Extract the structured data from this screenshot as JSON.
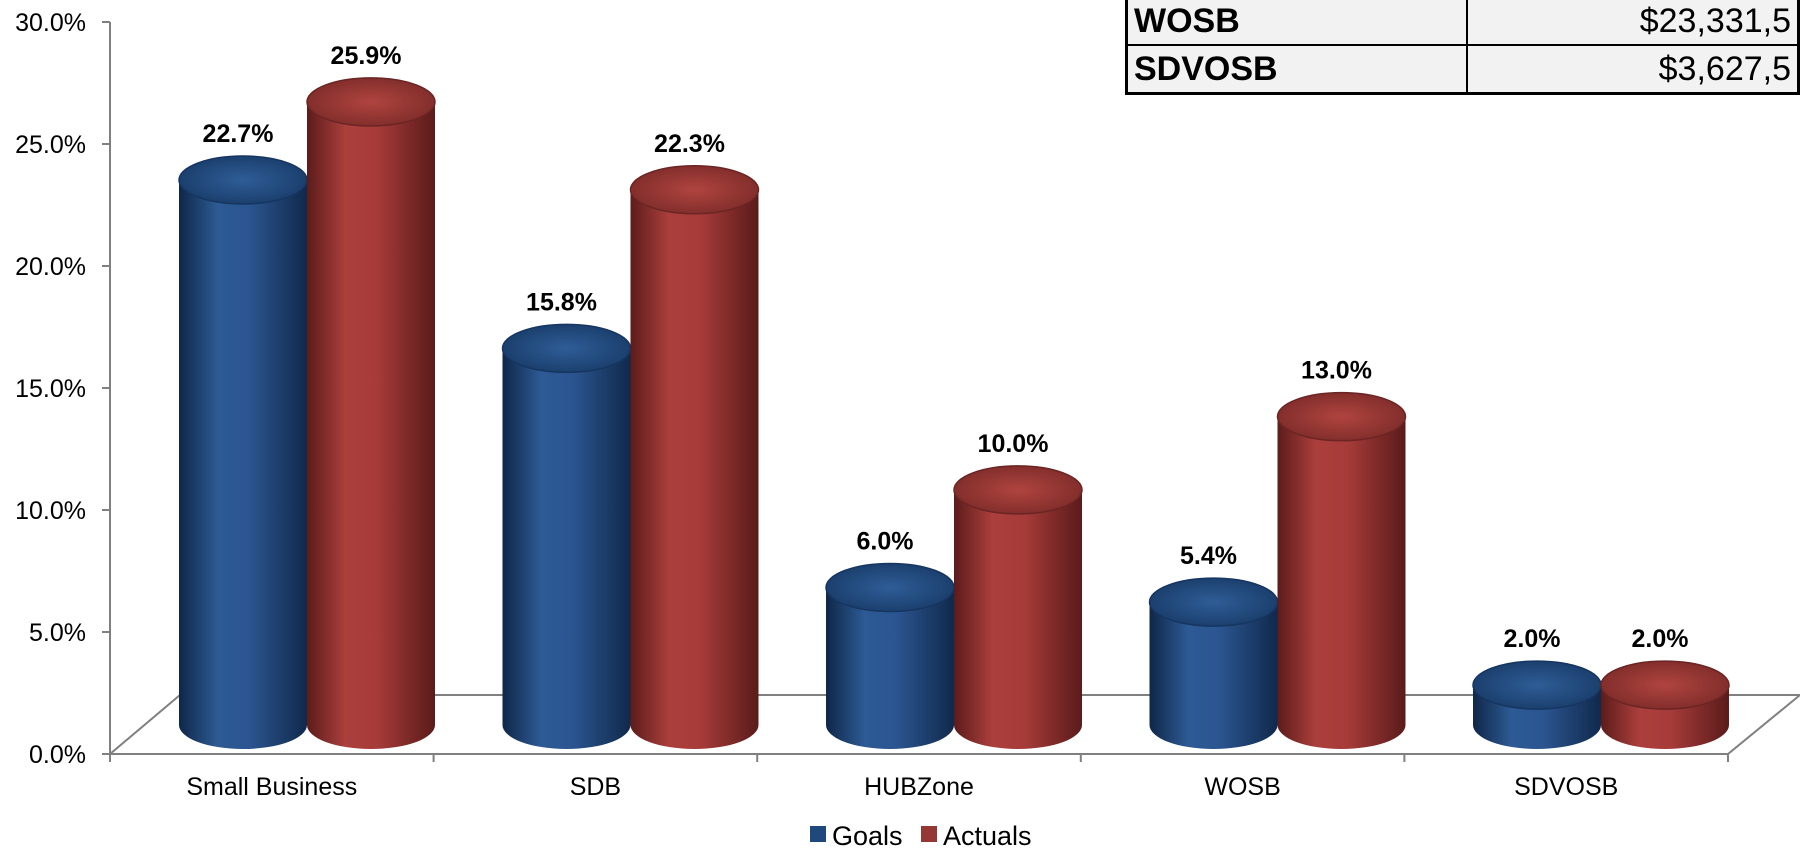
{
  "chart_data": {
    "type": "bar",
    "categories": [
      "Small Business",
      "SDB",
      "HUBZone",
      "WOSB",
      "SDVOSB"
    ],
    "series": [
      {
        "name": "Goals",
        "values": [
          22.7,
          15.8,
          6.0,
          5.4,
          2.0
        ],
        "labels": [
          "22.7%",
          "15.8%",
          "6.0%",
          "5.4%",
          "2.0%"
        ]
      },
      {
        "name": "Actuals",
        "values": [
          25.9,
          22.3,
          10.0,
          13.0,
          2.0
        ],
        "labels": [
          "25.9%",
          "22.3%",
          "10.0%",
          "13.0%",
          "2.0%"
        ]
      }
    ],
    "yticks": [
      "0.0%",
      "5.0%",
      "10.0%",
      "15.0%",
      "20.0%",
      "25.0%",
      "30.0%"
    ],
    "ylim": [
      0,
      30
    ],
    "legend_position": "bottom",
    "grid": false
  },
  "colors": {
    "goals": "#1F497D",
    "actuals": "#953735",
    "axis": "#808080"
  },
  "table": {
    "rows": [
      {
        "category": "WOSB",
        "value": "$23,331,5"
      },
      {
        "category": "SDVOSB",
        "value": "$3,627,5"
      }
    ]
  }
}
